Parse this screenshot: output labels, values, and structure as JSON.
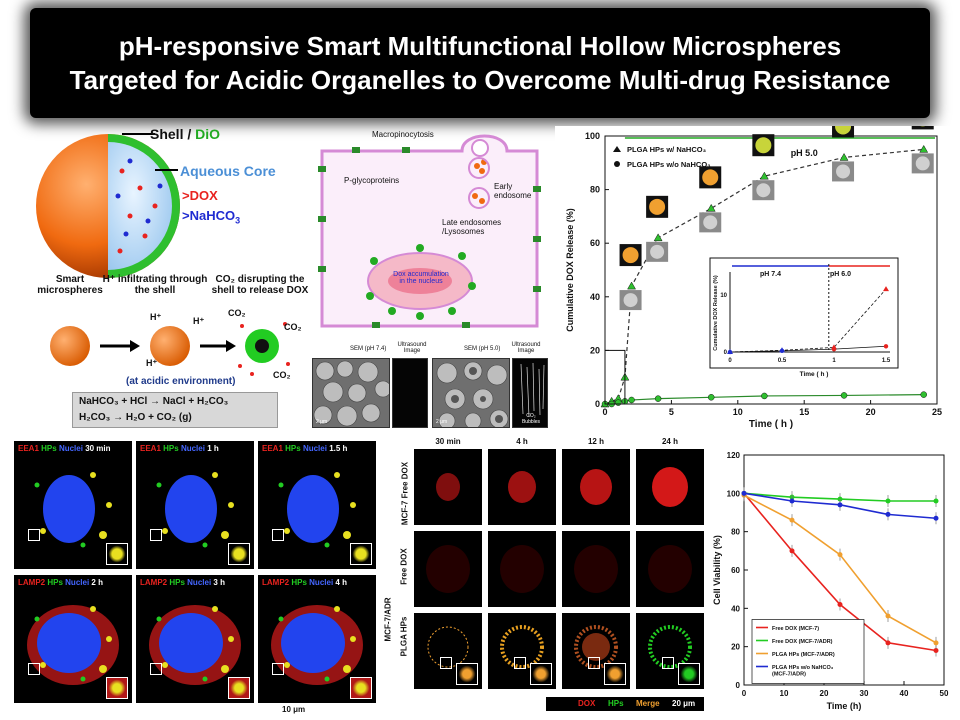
{
  "title": {
    "line1": "pH-responsive Smart Multifunctional Hollow Microspheres",
    "line2": "Targeted for Acidic Organelles to Overcome Multi-drug Resistance"
  },
  "schematic": {
    "shell_label": "Shell / ",
    "shell_dye": "DiO",
    "aqueous_core": "Aqueous Core",
    "dox": "DOX",
    "nahco3": "NaHCO",
    "nahco3_sub": "3",
    "step1": "Smart microspheres",
    "step2": "H⁺ infiltrating through the shell",
    "step3": "CO₂ disrupting the shell to release DOX",
    "h_plus": "H⁺",
    "co2": "CO₂",
    "acidic": "(at acidic environment)",
    "reaction1": "NaHCO₃ + HCl → NaCl + H₂CO₃",
    "reaction2": "H₂CO₃ → H₂O + CO₂ (g)"
  },
  "cell_diagram": {
    "macropinocytosis": "Macropinocytosis",
    "pgp": "P-glycoproteins",
    "early": "Early endosome",
    "late": "Late endosomes /Lysosomes",
    "dox_acc": "Dox accumulation in the nucleus",
    "sem1": "SEM (pH 7.4)",
    "us1": "Ultrasound Image",
    "sem2": "SEM (pH 5.0)",
    "us2": "Ultrasound Image",
    "co2_bubbles": "CO₂ Bubbles",
    "scale1": "2 μm",
    "scale2": "2 μm"
  },
  "chart_data": [
    {
      "type": "line",
      "title": "",
      "xlabel": "Time ( h )",
      "ylabel": "Cumulative DOX Release (%)",
      "xlim": [
        0,
        25
      ],
      "ylim": [
        0,
        100
      ],
      "xticks": [
        0,
        5,
        10,
        15,
        20,
        25
      ],
      "yticks": [
        0,
        20,
        40,
        60,
        80,
        100
      ],
      "annotation": "pH 5.0",
      "series": [
        {
          "name": "PLGA HPs w/  NaHCO₃",
          "color": "#111111",
          "marker": "triangle",
          "x": [
            0,
            0.5,
            1,
            1.5,
            2,
            4,
            8,
            12,
            18,
            24
          ],
          "y": [
            0,
            1,
            2,
            10,
            44,
            62,
            73,
            85,
            92,
            95
          ]
        },
        {
          "name": "PLGA HPs w/o NaHCO₃",
          "color": "#111111",
          "marker": "circle",
          "x": [
            0,
            0.5,
            1,
            1.5,
            2,
            4,
            8,
            12,
            18,
            24
          ],
          "y": [
            0,
            0,
            0.5,
            1,
            1.5,
            2,
            2.5,
            3,
            3.2,
            3.5
          ]
        }
      ],
      "inset": {
        "xlabel": "Time ( h )",
        "ylabel": "Cumulative DOX Release (%)",
        "ph74": "pH 7.4",
        "ph60": "pH 6.0",
        "xticks": [
          "0",
          "0.5",
          "1",
          "1.5"
        ],
        "yticks": [
          "0",
          "10"
        ],
        "series": [
          {
            "name": "w/ NaHCO₃",
            "x": [
              0,
              0.5,
              1,
              1.5
            ],
            "y": [
              0,
              0.3,
              0.8,
              11
            ]
          },
          {
            "name": "w/o NaHCO₃",
            "x": [
              0,
              0.5,
              1,
              1.5
            ],
            "y": [
              0,
              0.2,
              0.5,
              1
            ]
          }
        ]
      }
    },
    {
      "type": "line",
      "title": "",
      "xlabel": "Time (h)",
      "ylabel": "Cell  Viability (%)",
      "xlim": [
        0,
        50
      ],
      "ylim": [
        0,
        120
      ],
      "xticks": [
        0,
        10,
        20,
        30,
        40,
        50
      ],
      "yticks": [
        0,
        20,
        40,
        60,
        80,
        100,
        120
      ],
      "series": [
        {
          "name": "Free DOX (MCF-7)",
          "color": "#e8231f",
          "x": [
            0,
            12,
            24,
            36,
            48
          ],
          "y": [
            100,
            70,
            42,
            22,
            18
          ]
        },
        {
          "name": "Free DOX (MCF-7/ADR)",
          "color": "#22cc22",
          "x": [
            0,
            12,
            24,
            36,
            48
          ],
          "y": [
            100,
            98,
            97,
            96,
            96
          ]
        },
        {
          "name": "PLGA HPs (MCF-7/ADR)",
          "color": "#f0a030",
          "x": [
            0,
            12,
            24,
            36,
            48
          ],
          "y": [
            99,
            86,
            68,
            36,
            22
          ]
        },
        {
          "name": "PLGA HPs w/o NaHCO₃ (MCF-7/ADR)",
          "color": "#1f2bd1",
          "x": [
            0,
            12,
            24,
            36,
            48
          ],
          "y": [
            100,
            96,
            94,
            89,
            87
          ]
        }
      ]
    }
  ],
  "micro_left": {
    "panels": [
      {
        "marker": "EEA1",
        "hp": "HPs",
        "nuc": "Nuclei",
        "time": "30 min"
      },
      {
        "marker": "EEA1",
        "hp": "HPs",
        "nuc": "Nuclei",
        "time": "1 h"
      },
      {
        "marker": "EEA1",
        "hp": "HPs",
        "nuc": "Nuclei",
        "time": "1.5 h"
      },
      {
        "marker": "LAMP2",
        "hp": "HPs",
        "nuc": "Nuclei",
        "time": "2 h"
      },
      {
        "marker": "LAMP2",
        "hp": "HPs",
        "nuc": "Nuclei",
        "time": "3 h"
      },
      {
        "marker": "LAMP2",
        "hp": "HPs",
        "nuc": "Nuclei",
        "time": "4 h"
      }
    ],
    "scale": "10 μm"
  },
  "micro_mid": {
    "times": [
      "30 min",
      "4 h",
      "12 h",
      "24 h"
    ],
    "row1": "MCF-7 Free DOX",
    "row2": "Free DOX",
    "row3": "PLGA HPs",
    "row23_cell": "MCF-7/ADR",
    "legend_dox": "DOX",
    "legend_hps": "HPs",
    "legend_merge": "Merge",
    "scale": "20 μm"
  },
  "colors": {
    "dox": "#e8231f",
    "hps": "#22cc22",
    "merge": "#f0a030",
    "nuclei": "#3355ff"
  }
}
